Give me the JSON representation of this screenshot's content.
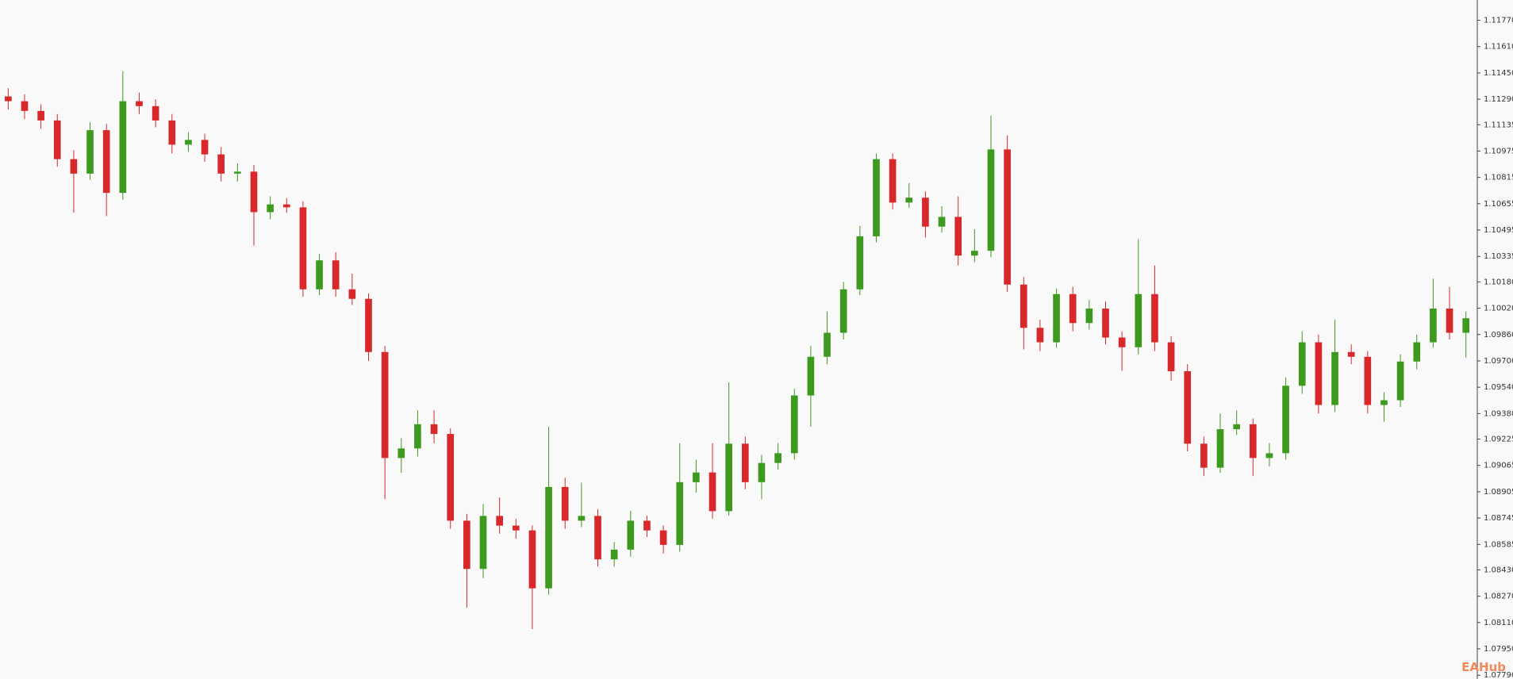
{
  "chart_data": {
    "type": "candlestick",
    "open": [
      1.11307,
      1.11278,
      1.11219,
      1.11161,
      1.10926,
      1.10838,
      1.11102,
      1.10721,
      1.11278,
      1.11248,
      1.11161,
      1.11014,
      1.11043,
      1.10955,
      1.10838,
      1.1085,
      1.10604,
      1.10651,
      1.10633,
      1.10135,
      1.10311,
      1.10135,
      1.10077,
      1.09754,
      1.0911,
      1.09168,
      1.09315,
      1.09256,
      1.08729,
      1.08436,
      1.08758,
      1.08699,
      1.0867,
      1.08318,
      1.08934,
      1.08729,
      1.08758,
      1.08494,
      1.08553,
      1.08729,
      1.0867,
      1.08582,
      1.08963,
      1.09022,
      1.08787,
      1.09197,
      1.08963,
      1.0908,
      1.09139,
      1.0949,
      1.09725,
      1.09871,
      1.10135,
      1.10457,
      1.10926,
      1.10662,
      1.10692,
      1.10516,
      1.10575,
      1.1034,
      1.10369,
      1.10985,
      1.10164,
      1.09901,
      1.09813,
      1.10106,
      1.0993,
      1.10018,
      1.09842,
      1.09783,
      1.10106,
      1.09813,
      1.09637,
      1.09197,
      1.09051,
      1.09285,
      1.09315,
      1.0911,
      1.09139,
      1.09549,
      1.09813,
      1.09432,
      1.09754,
      1.09725,
      1.09432,
      1.09461,
      1.09696,
      1.09813,
      1.10018,
      1.09871
    ],
    "high": [
      1.11357,
      1.1132,
      1.1126,
      1.112,
      1.1098,
      1.1115,
      1.1114,
      1.1146,
      1.1133,
      1.1129,
      1.112,
      1.1109,
      1.1108,
      1.11,
      1.109,
      1.1089,
      1.107,
      1.1069,
      1.1067,
      1.1035,
      1.1036,
      1.1023,
      1.1011,
      1.0979,
      1.0923,
      1.094,
      1.094,
      1.0929,
      1.0877,
      1.0883,
      1.0887,
      1.0874,
      1.087,
      1.093,
      1.0899,
      1.0896,
      1.088,
      1.086,
      1.0879,
      1.0876,
      1.087,
      1.092,
      1.091,
      1.092,
      1.0957,
      1.0924,
      1.0913,
      1.092,
      1.0953,
      1.0979,
      1.1,
      1.1018,
      1.1052,
      1.1096,
      1.1096,
      1.1078,
      1.1073,
      1.1064,
      1.107,
      1.105,
      1.1119,
      1.1107,
      1.1021,
      1.0995,
      1.1014,
      1.1015,
      1.1007,
      1.1006,
      1.0988,
      1.1044,
      1.1028,
      1.0985,
      1.0968,
      1.0924,
      1.0938,
      1.094,
      1.0935,
      1.092,
      1.096,
      1.0988,
      1.0986,
      1.0995,
      1.098,
      1.0976,
      1.0951,
      1.0974,
      1.0986,
      1.102,
      1.1015,
      1.1
    ],
    "low": [
      1.11228,
      1.1117,
      1.1111,
      1.1088,
      1.106,
      1.108,
      1.1058,
      1.1068,
      1.112,
      1.1112,
      1.1096,
      1.1097,
      1.1091,
      1.1079,
      1.1079,
      1.104,
      1.1056,
      1.106,
      1.1009,
      1.101,
      1.1009,
      1.1004,
      1.097,
      1.0886,
      1.0902,
      1.0912,
      1.092,
      1.0868,
      1.082,
      1.0838,
      1.0865,
      1.0862,
      1.0807,
      1.0828,
      1.0868,
      1.0869,
      1.0845,
      1.0845,
      1.0851,
      1.0863,
      1.0853,
      1.0854,
      1.089,
      1.0874,
      1.0876,
      1.0892,
      1.0886,
      1.0904,
      1.091,
      1.093,
      1.0968,
      1.0983,
      1.101,
      1.1042,
      1.1062,
      1.1063,
      1.1045,
      1.1048,
      1.1028,
      1.103,
      1.1033,
      1.1012,
      1.0977,
      1.0976,
      1.0978,
      1.0988,
      1.0989,
      1.098,
      1.0964,
      1.0974,
      1.0976,
      1.0958,
      1.0915,
      1.09,
      1.0902,
      1.0925,
      1.09,
      1.0906,
      1.091,
      1.095,
      1.0938,
      1.0939,
      1.0968,
      1.0938,
      1.0933,
      1.0942,
      1.0965,
      1.0978,
      1.0983,
      1.0972
    ],
    "close": [
      1.11278,
      1.11219,
      1.11161,
      1.10926,
      1.10838,
      1.11102,
      1.10721,
      1.11278,
      1.11248,
      1.11161,
      1.11014,
      1.11043,
      1.10955,
      1.10838,
      1.1085,
      1.10604,
      1.10651,
      1.10633,
      1.10135,
      1.10311,
      1.10135,
      1.10077,
      1.09754,
      1.0911,
      1.09168,
      1.09315,
      1.09256,
      1.08729,
      1.08436,
      1.08758,
      1.08699,
      1.0867,
      1.08318,
      1.08934,
      1.08729,
      1.08758,
      1.08494,
      1.08553,
      1.08729,
      1.0867,
      1.08582,
      1.08963,
      1.09022,
      1.08787,
      1.09197,
      1.08963,
      1.0908,
      1.09139,
      1.0949,
      1.09725,
      1.09871,
      1.10135,
      1.10457,
      1.10926,
      1.10662,
      1.10692,
      1.10516,
      1.10575,
      1.1034,
      1.10369,
      1.10985,
      1.10164,
      1.09901,
      1.09813,
      1.10106,
      1.0993,
      1.10018,
      1.09842,
      1.09783,
      1.10106,
      1.09813,
      1.09637,
      1.09197,
      1.09051,
      1.09285,
      1.09315,
      1.0911,
      1.09139,
      1.09549,
      1.09813,
      1.09432,
      1.09754,
      1.09725,
      1.09432,
      1.09461,
      1.09696,
      1.09813,
      1.10018,
      1.09871,
      1.09959
    ],
    "up_color": "#3d9a1e",
    "down_color": "#d8282c",
    "ylim": [
      1.07767,
      1.11893
    ],
    "yticks": [
      {
        "value": 1.1177,
        "label": "1.11770"
      },
      {
        "value": 1.1161,
        "label": "1.11610"
      },
      {
        "value": 1.1145,
        "label": "1.11450"
      },
      {
        "value": 1.1129,
        "label": "1.11290"
      },
      {
        "value": 1.11135,
        "label": "1.11135"
      },
      {
        "value": 1.10975,
        "label": "1.10975"
      },
      {
        "value": 1.10815,
        "label": "1.10815"
      },
      {
        "value": 1.10655,
        "label": "1.10655"
      },
      {
        "value": 1.10495,
        "label": "1.10495"
      },
      {
        "value": 1.10335,
        "label": "1.10335"
      },
      {
        "value": 1.1018,
        "label": "1.10180"
      },
      {
        "value": 1.1002,
        "label": "1.10020"
      },
      {
        "value": 1.0986,
        "label": "1.09860"
      },
      {
        "value": 1.097,
        "label": "1.09700"
      },
      {
        "value": 1.0954,
        "label": "1.09540"
      },
      {
        "value": 1.0938,
        "label": "1.09380"
      },
      {
        "value": 1.09225,
        "label": "1.09225"
      },
      {
        "value": 1.09065,
        "label": "1.09065"
      },
      {
        "value": 1.08905,
        "label": "1.08905"
      },
      {
        "value": 1.08745,
        "label": "1.08745"
      },
      {
        "value": 1.08585,
        "label": "1.08585"
      },
      {
        "value": 1.0843,
        "label": "1.08430"
      },
      {
        "value": 1.0827,
        "label": "1.08270"
      },
      {
        "value": 1.0811,
        "label": "1.08110"
      },
      {
        "value": 1.0795,
        "label": "1.07950"
      },
      {
        "value": 1.0779,
        "label": "1.07790"
      }
    ],
    "watermark": "EAHub"
  }
}
